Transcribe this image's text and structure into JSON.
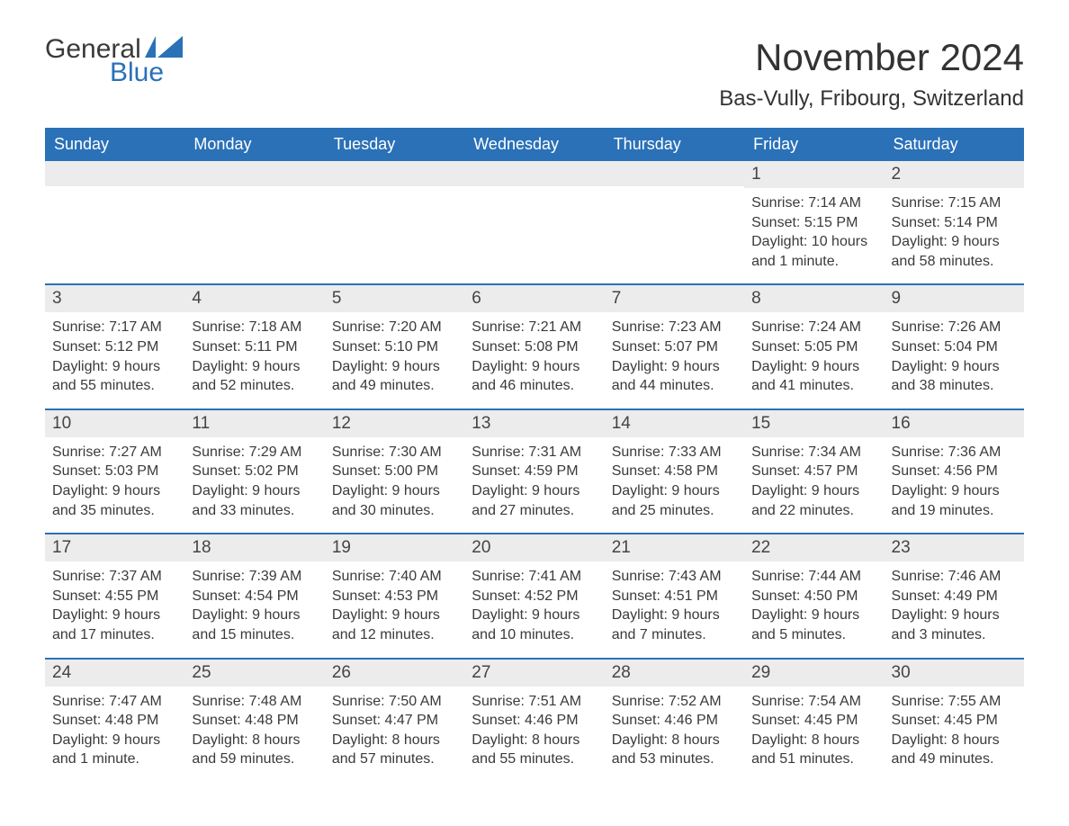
{
  "logo": {
    "top": "General",
    "bottom": "Blue",
    "icon_color": "#2a71b8"
  },
  "title": "November 2024",
  "location": "Bas-Vully, Fribourg, Switzerland",
  "colors": {
    "header_bg": "#2a71b8",
    "header_text": "#ffffff",
    "week_border": "#2a71b8",
    "daynum_bg": "#ececec",
    "body_text": "#3a3a3a",
    "page_bg": "#ffffff"
  },
  "day_headers": [
    "Sunday",
    "Monday",
    "Tuesday",
    "Wednesday",
    "Thursday",
    "Friday",
    "Saturday"
  ],
  "weeks": [
    [
      null,
      null,
      null,
      null,
      null,
      {
        "n": "1",
        "sunrise": "Sunrise: 7:14 AM",
        "sunset": "Sunset: 5:15 PM",
        "daylight": "Daylight: 10 hours and 1 minute."
      },
      {
        "n": "2",
        "sunrise": "Sunrise: 7:15 AM",
        "sunset": "Sunset: 5:14 PM",
        "daylight": "Daylight: 9 hours and 58 minutes."
      }
    ],
    [
      {
        "n": "3",
        "sunrise": "Sunrise: 7:17 AM",
        "sunset": "Sunset: 5:12 PM",
        "daylight": "Daylight: 9 hours and 55 minutes."
      },
      {
        "n": "4",
        "sunrise": "Sunrise: 7:18 AM",
        "sunset": "Sunset: 5:11 PM",
        "daylight": "Daylight: 9 hours and 52 minutes."
      },
      {
        "n": "5",
        "sunrise": "Sunrise: 7:20 AM",
        "sunset": "Sunset: 5:10 PM",
        "daylight": "Daylight: 9 hours and 49 minutes."
      },
      {
        "n": "6",
        "sunrise": "Sunrise: 7:21 AM",
        "sunset": "Sunset: 5:08 PM",
        "daylight": "Daylight: 9 hours and 46 minutes."
      },
      {
        "n": "7",
        "sunrise": "Sunrise: 7:23 AM",
        "sunset": "Sunset: 5:07 PM",
        "daylight": "Daylight: 9 hours and 44 minutes."
      },
      {
        "n": "8",
        "sunrise": "Sunrise: 7:24 AM",
        "sunset": "Sunset: 5:05 PM",
        "daylight": "Daylight: 9 hours and 41 minutes."
      },
      {
        "n": "9",
        "sunrise": "Sunrise: 7:26 AM",
        "sunset": "Sunset: 5:04 PM",
        "daylight": "Daylight: 9 hours and 38 minutes."
      }
    ],
    [
      {
        "n": "10",
        "sunrise": "Sunrise: 7:27 AM",
        "sunset": "Sunset: 5:03 PM",
        "daylight": "Daylight: 9 hours and 35 minutes."
      },
      {
        "n": "11",
        "sunrise": "Sunrise: 7:29 AM",
        "sunset": "Sunset: 5:02 PM",
        "daylight": "Daylight: 9 hours and 33 minutes."
      },
      {
        "n": "12",
        "sunrise": "Sunrise: 7:30 AM",
        "sunset": "Sunset: 5:00 PM",
        "daylight": "Daylight: 9 hours and 30 minutes."
      },
      {
        "n": "13",
        "sunrise": "Sunrise: 7:31 AM",
        "sunset": "Sunset: 4:59 PM",
        "daylight": "Daylight: 9 hours and 27 minutes."
      },
      {
        "n": "14",
        "sunrise": "Sunrise: 7:33 AM",
        "sunset": "Sunset: 4:58 PM",
        "daylight": "Daylight: 9 hours and 25 minutes."
      },
      {
        "n": "15",
        "sunrise": "Sunrise: 7:34 AM",
        "sunset": "Sunset: 4:57 PM",
        "daylight": "Daylight: 9 hours and 22 minutes."
      },
      {
        "n": "16",
        "sunrise": "Sunrise: 7:36 AM",
        "sunset": "Sunset: 4:56 PM",
        "daylight": "Daylight: 9 hours and 19 minutes."
      }
    ],
    [
      {
        "n": "17",
        "sunrise": "Sunrise: 7:37 AM",
        "sunset": "Sunset: 4:55 PM",
        "daylight": "Daylight: 9 hours and 17 minutes."
      },
      {
        "n": "18",
        "sunrise": "Sunrise: 7:39 AM",
        "sunset": "Sunset: 4:54 PM",
        "daylight": "Daylight: 9 hours and 15 minutes."
      },
      {
        "n": "19",
        "sunrise": "Sunrise: 7:40 AM",
        "sunset": "Sunset: 4:53 PM",
        "daylight": "Daylight: 9 hours and 12 minutes."
      },
      {
        "n": "20",
        "sunrise": "Sunrise: 7:41 AM",
        "sunset": "Sunset: 4:52 PM",
        "daylight": "Daylight: 9 hours and 10 minutes."
      },
      {
        "n": "21",
        "sunrise": "Sunrise: 7:43 AM",
        "sunset": "Sunset: 4:51 PM",
        "daylight": "Daylight: 9 hours and 7 minutes."
      },
      {
        "n": "22",
        "sunrise": "Sunrise: 7:44 AM",
        "sunset": "Sunset: 4:50 PM",
        "daylight": "Daylight: 9 hours and 5 minutes."
      },
      {
        "n": "23",
        "sunrise": "Sunrise: 7:46 AM",
        "sunset": "Sunset: 4:49 PM",
        "daylight": "Daylight: 9 hours and 3 minutes."
      }
    ],
    [
      {
        "n": "24",
        "sunrise": "Sunrise: 7:47 AM",
        "sunset": "Sunset: 4:48 PM",
        "daylight": "Daylight: 9 hours and 1 minute."
      },
      {
        "n": "25",
        "sunrise": "Sunrise: 7:48 AM",
        "sunset": "Sunset: 4:48 PM",
        "daylight": "Daylight: 8 hours and 59 minutes."
      },
      {
        "n": "26",
        "sunrise": "Sunrise: 7:50 AM",
        "sunset": "Sunset: 4:47 PM",
        "daylight": "Daylight: 8 hours and 57 minutes."
      },
      {
        "n": "27",
        "sunrise": "Sunrise: 7:51 AM",
        "sunset": "Sunset: 4:46 PM",
        "daylight": "Daylight: 8 hours and 55 minutes."
      },
      {
        "n": "28",
        "sunrise": "Sunrise: 7:52 AM",
        "sunset": "Sunset: 4:46 PM",
        "daylight": "Daylight: 8 hours and 53 minutes."
      },
      {
        "n": "29",
        "sunrise": "Sunrise: 7:54 AM",
        "sunset": "Sunset: 4:45 PM",
        "daylight": "Daylight: 8 hours and 51 minutes."
      },
      {
        "n": "30",
        "sunrise": "Sunrise: 7:55 AM",
        "sunset": "Sunset: 4:45 PM",
        "daylight": "Daylight: 8 hours and 49 minutes."
      }
    ]
  ]
}
